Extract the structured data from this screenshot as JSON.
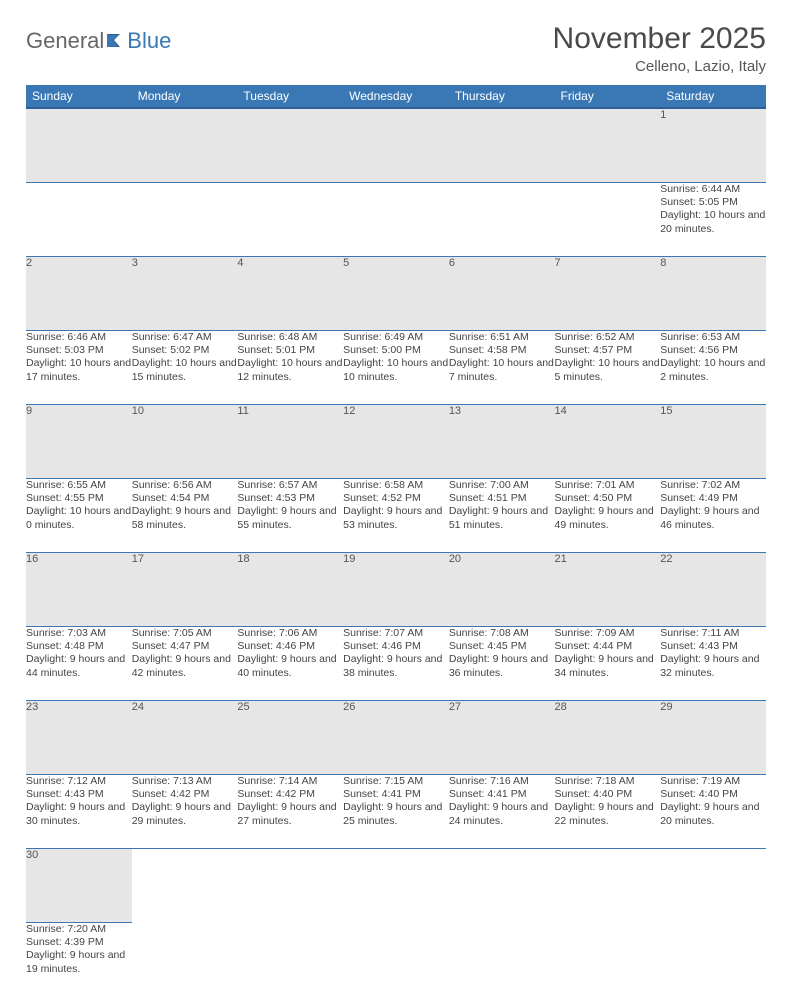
{
  "logo": {
    "text1": "General",
    "text2": "Blue"
  },
  "title": "November 2025",
  "location": "Celleno, Lazio, Italy",
  "colors": {
    "header_bg": "#3a78b5",
    "header_border": "#2d5f94",
    "daynum_bg": "#e6e6e6",
    "cell_border": "#3a78b5",
    "text": "#444444"
  },
  "day_headers": [
    "Sunday",
    "Monday",
    "Tuesday",
    "Wednesday",
    "Thursday",
    "Friday",
    "Saturday"
  ],
  "weeks": [
    [
      null,
      null,
      null,
      null,
      null,
      null,
      {
        "n": "1",
        "sr": "Sunrise: 6:44 AM",
        "ss": "Sunset: 5:05 PM",
        "dl": "Daylight: 10 hours and 20 minutes."
      }
    ],
    [
      {
        "n": "2",
        "sr": "Sunrise: 6:46 AM",
        "ss": "Sunset: 5:03 PM",
        "dl": "Daylight: 10 hours and 17 minutes."
      },
      {
        "n": "3",
        "sr": "Sunrise: 6:47 AM",
        "ss": "Sunset: 5:02 PM",
        "dl": "Daylight: 10 hours and 15 minutes."
      },
      {
        "n": "4",
        "sr": "Sunrise: 6:48 AM",
        "ss": "Sunset: 5:01 PM",
        "dl": "Daylight: 10 hours and 12 minutes."
      },
      {
        "n": "5",
        "sr": "Sunrise: 6:49 AM",
        "ss": "Sunset: 5:00 PM",
        "dl": "Daylight: 10 hours and 10 minutes."
      },
      {
        "n": "6",
        "sr": "Sunrise: 6:51 AM",
        "ss": "Sunset: 4:58 PM",
        "dl": "Daylight: 10 hours and 7 minutes."
      },
      {
        "n": "7",
        "sr": "Sunrise: 6:52 AM",
        "ss": "Sunset: 4:57 PM",
        "dl": "Daylight: 10 hours and 5 minutes."
      },
      {
        "n": "8",
        "sr": "Sunrise: 6:53 AM",
        "ss": "Sunset: 4:56 PM",
        "dl": "Daylight: 10 hours and 2 minutes."
      }
    ],
    [
      {
        "n": "9",
        "sr": "Sunrise: 6:55 AM",
        "ss": "Sunset: 4:55 PM",
        "dl": "Daylight: 10 hours and 0 minutes."
      },
      {
        "n": "10",
        "sr": "Sunrise: 6:56 AM",
        "ss": "Sunset: 4:54 PM",
        "dl": "Daylight: 9 hours and 58 minutes."
      },
      {
        "n": "11",
        "sr": "Sunrise: 6:57 AM",
        "ss": "Sunset: 4:53 PM",
        "dl": "Daylight: 9 hours and 55 minutes."
      },
      {
        "n": "12",
        "sr": "Sunrise: 6:58 AM",
        "ss": "Sunset: 4:52 PM",
        "dl": "Daylight: 9 hours and 53 minutes."
      },
      {
        "n": "13",
        "sr": "Sunrise: 7:00 AM",
        "ss": "Sunset: 4:51 PM",
        "dl": "Daylight: 9 hours and 51 minutes."
      },
      {
        "n": "14",
        "sr": "Sunrise: 7:01 AM",
        "ss": "Sunset: 4:50 PM",
        "dl": "Daylight: 9 hours and 49 minutes."
      },
      {
        "n": "15",
        "sr": "Sunrise: 7:02 AM",
        "ss": "Sunset: 4:49 PM",
        "dl": "Daylight: 9 hours and 46 minutes."
      }
    ],
    [
      {
        "n": "16",
        "sr": "Sunrise: 7:03 AM",
        "ss": "Sunset: 4:48 PM",
        "dl": "Daylight: 9 hours and 44 minutes."
      },
      {
        "n": "17",
        "sr": "Sunrise: 7:05 AM",
        "ss": "Sunset: 4:47 PM",
        "dl": "Daylight: 9 hours and 42 minutes."
      },
      {
        "n": "18",
        "sr": "Sunrise: 7:06 AM",
        "ss": "Sunset: 4:46 PM",
        "dl": "Daylight: 9 hours and 40 minutes."
      },
      {
        "n": "19",
        "sr": "Sunrise: 7:07 AM",
        "ss": "Sunset: 4:46 PM",
        "dl": "Daylight: 9 hours and 38 minutes."
      },
      {
        "n": "20",
        "sr": "Sunrise: 7:08 AM",
        "ss": "Sunset: 4:45 PM",
        "dl": "Daylight: 9 hours and 36 minutes."
      },
      {
        "n": "21",
        "sr": "Sunrise: 7:09 AM",
        "ss": "Sunset: 4:44 PM",
        "dl": "Daylight: 9 hours and 34 minutes."
      },
      {
        "n": "22",
        "sr": "Sunrise: 7:11 AM",
        "ss": "Sunset: 4:43 PM",
        "dl": "Daylight: 9 hours and 32 minutes."
      }
    ],
    [
      {
        "n": "23",
        "sr": "Sunrise: 7:12 AM",
        "ss": "Sunset: 4:43 PM",
        "dl": "Daylight: 9 hours and 30 minutes."
      },
      {
        "n": "24",
        "sr": "Sunrise: 7:13 AM",
        "ss": "Sunset: 4:42 PM",
        "dl": "Daylight: 9 hours and 29 minutes."
      },
      {
        "n": "25",
        "sr": "Sunrise: 7:14 AM",
        "ss": "Sunset: 4:42 PM",
        "dl": "Daylight: 9 hours and 27 minutes."
      },
      {
        "n": "26",
        "sr": "Sunrise: 7:15 AM",
        "ss": "Sunset: 4:41 PM",
        "dl": "Daylight: 9 hours and 25 minutes."
      },
      {
        "n": "27",
        "sr": "Sunrise: 7:16 AM",
        "ss": "Sunset: 4:41 PM",
        "dl": "Daylight: 9 hours and 24 minutes."
      },
      {
        "n": "28",
        "sr": "Sunrise: 7:18 AM",
        "ss": "Sunset: 4:40 PM",
        "dl": "Daylight: 9 hours and 22 minutes."
      },
      {
        "n": "29",
        "sr": "Sunrise: 7:19 AM",
        "ss": "Sunset: 4:40 PM",
        "dl": "Daylight: 9 hours and 20 minutes."
      }
    ],
    [
      {
        "n": "30",
        "sr": "Sunrise: 7:20 AM",
        "ss": "Sunset: 4:39 PM",
        "dl": "Daylight: 9 hours and 19 minutes."
      },
      null,
      null,
      null,
      null,
      null,
      null
    ]
  ]
}
